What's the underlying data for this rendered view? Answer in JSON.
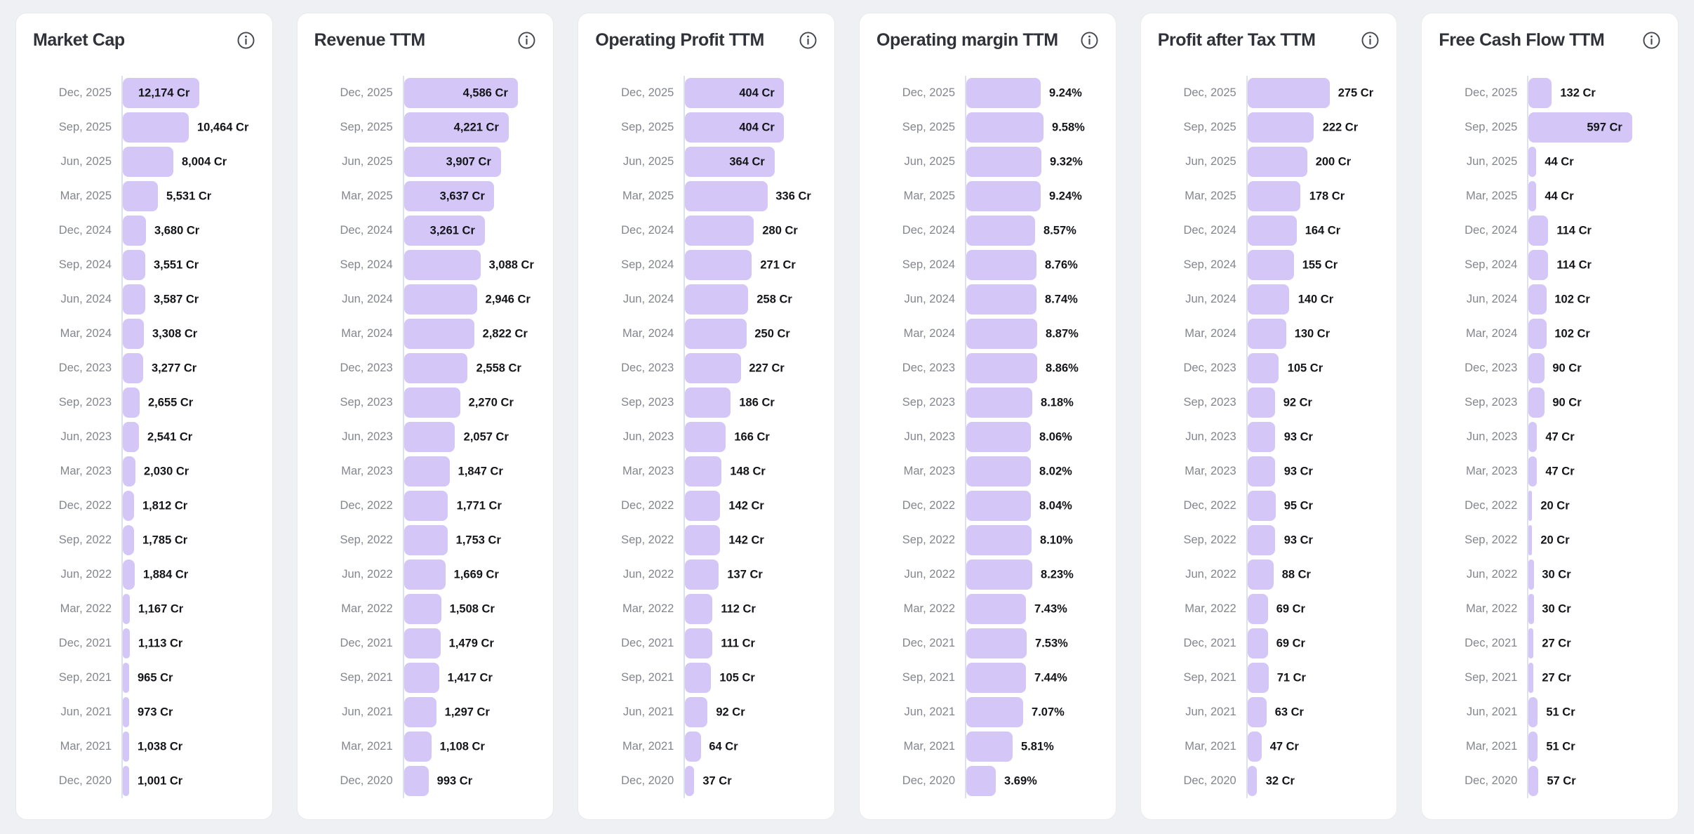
{
  "colors": {
    "bar_fill": "#d4c7f8",
    "card_background": "#ffffff",
    "page_background": "#eef0f3",
    "date_label": "#83868d",
    "value_label": "#141519",
    "title_text": "#2f3238",
    "baseline": "#dde1ec"
  },
  "icons": {
    "info": "info-icon"
  },
  "chart_data": [
    {
      "type": "bar",
      "orientation": "horizontal",
      "title": "Market Cap",
      "unit": "Cr",
      "legend": "none",
      "grid": "off",
      "xlim": [
        0,
        21000
      ],
      "categories": [
        "Dec, 2025",
        "Sep, 2025",
        "Jun, 2025",
        "Mar, 2025",
        "Dec, 2024",
        "Sep, 2024",
        "Jun, 2024",
        "Mar, 2024",
        "Dec, 2023",
        "Sep, 2023",
        "Jun, 2023",
        "Mar, 2023",
        "Dec, 2022",
        "Sep, 2022",
        "Jun, 2022",
        "Mar, 2022",
        "Dec, 2021",
        "Sep, 2021",
        "Jun, 2021",
        "Mar, 2021",
        "Dec, 2020"
      ],
      "values": [
        12174,
        10464,
        8004,
        5531,
        3680,
        3551,
        3587,
        3308,
        3277,
        2655,
        2541,
        2030,
        1812,
        1785,
        1884,
        1167,
        1113,
        965,
        973,
        1038,
        1001
      ],
      "labels": [
        "12,174 Cr",
        "10,464 Cr",
        "8,004 Cr",
        "5,531 Cr",
        "3,680 Cr",
        "3,551 Cr",
        "3,587 Cr",
        "3,308 Cr",
        "3,277 Cr",
        "2,655 Cr",
        "2,541 Cr",
        "2,030 Cr",
        "1,812 Cr",
        "1,785 Cr",
        "1,884 Cr",
        "1,167 Cr",
        "1,113 Cr",
        "965 Cr",
        "973 Cr",
        "1,038 Cr",
        "1,001 Cr"
      ]
    },
    {
      "type": "bar",
      "orientation": "horizontal",
      "title": "Revenue TTM",
      "unit": "Cr",
      "legend": "none",
      "grid": "off",
      "xlim": [
        0,
        5330
      ],
      "categories": [
        "Dec, 2025",
        "Sep, 2025",
        "Jun, 2025",
        "Mar, 2025",
        "Dec, 2024",
        "Sep, 2024",
        "Jun, 2024",
        "Mar, 2024",
        "Dec, 2023",
        "Sep, 2023",
        "Jun, 2023",
        "Mar, 2023",
        "Dec, 2022",
        "Sep, 2022",
        "Jun, 2022",
        "Mar, 2022",
        "Dec, 2021",
        "Sep, 2021",
        "Jun, 2021",
        "Mar, 2021",
        "Dec, 2020"
      ],
      "values": [
        4586,
        4221,
        3907,
        3637,
        3261,
        3088,
        2946,
        2822,
        2558,
        2270,
        2057,
        1847,
        1771,
        1753,
        1669,
        1508,
        1479,
        1417,
        1297,
        1108,
        993
      ],
      "labels": [
        "4,586 Cr",
        "4,221 Cr",
        "3,907 Cr",
        "3,637 Cr",
        "3,261 Cr",
        "3,088 Cr",
        "2,946 Cr",
        "2,822 Cr",
        "2,558 Cr",
        "2,270 Cr",
        "2,057 Cr",
        "1,847 Cr",
        "1,771 Cr",
        "1,753 Cr",
        "1,669 Cr",
        "1,508 Cr",
        "1,479 Cr",
        "1,417 Cr",
        "1,297 Cr",
        "1,108 Cr",
        "993 Cr"
      ]
    },
    {
      "type": "bar",
      "orientation": "horizontal",
      "title": "Operating Profit TTM",
      "unit": "Cr",
      "legend": "none",
      "grid": "off",
      "xlim": [
        0,
        540
      ],
      "categories": [
        "Dec, 2025",
        "Sep, 2025",
        "Jun, 2025",
        "Mar, 2025",
        "Dec, 2024",
        "Sep, 2024",
        "Jun, 2024",
        "Mar, 2024",
        "Dec, 2023",
        "Sep, 2023",
        "Jun, 2023",
        "Mar, 2023",
        "Dec, 2022",
        "Sep, 2022",
        "Jun, 2022",
        "Mar, 2022",
        "Dec, 2021",
        "Sep, 2021",
        "Jun, 2021",
        "Mar, 2021",
        "Dec, 2020"
      ],
      "values": [
        404,
        404,
        364,
        336,
        280,
        271,
        258,
        250,
        227,
        186,
        166,
        148,
        142,
        142,
        137,
        112,
        111,
        105,
        92,
        64,
        37
      ],
      "labels": [
        "404 Cr",
        "404 Cr",
        "364 Cr",
        "336 Cr",
        "280 Cr",
        "271 Cr",
        "258 Cr",
        "250 Cr",
        "227 Cr",
        "186 Cr",
        "166 Cr",
        "148 Cr",
        "142 Cr",
        "142 Cr",
        "137 Cr",
        "112 Cr",
        "111 Cr",
        "105 Cr",
        "92 Cr",
        "64 Cr",
        "37 Cr"
      ]
    },
    {
      "type": "bar",
      "orientation": "horizontal",
      "title": "Operating margin TTM",
      "unit": "%",
      "legend": "none",
      "grid": "off",
      "xlim": [
        0,
        16.5
      ],
      "categories": [
        "Dec, 2025",
        "Sep, 2025",
        "Jun, 2025",
        "Mar, 2025",
        "Dec, 2024",
        "Sep, 2024",
        "Jun, 2024",
        "Mar, 2024",
        "Dec, 2023",
        "Sep, 2023",
        "Jun, 2023",
        "Mar, 2023",
        "Dec, 2022",
        "Sep, 2022",
        "Jun, 2022",
        "Mar, 2022",
        "Dec, 2021",
        "Sep, 2021",
        "Jun, 2021",
        "Mar, 2021",
        "Dec, 2020"
      ],
      "values": [
        9.24,
        9.58,
        9.32,
        9.24,
        8.57,
        8.76,
        8.74,
        8.87,
        8.86,
        8.18,
        8.06,
        8.02,
        8.04,
        8.1,
        8.23,
        7.43,
        7.53,
        7.44,
        7.07,
        5.81,
        3.69
      ],
      "labels": [
        "9.24%",
        "9.58%",
        "9.32%",
        "9.24%",
        "8.57%",
        "8.76%",
        "8.74%",
        "8.87%",
        "8.86%",
        "8.18%",
        "8.06%",
        "8.02%",
        "8.04%",
        "8.10%",
        "8.23%",
        "7.43%",
        "7.53%",
        "7.44%",
        "7.07%",
        "5.81%",
        "3.69%"
      ]
    },
    {
      "type": "bar",
      "orientation": "horizontal",
      "title": "Profit after Tax TTM",
      "unit": "Cr",
      "legend": "none",
      "grid": "off",
      "xlim": [
        0,
        443
      ],
      "categories": [
        "Dec, 2025",
        "Sep, 2025",
        "Jun, 2025",
        "Mar, 2025",
        "Dec, 2024",
        "Sep, 2024",
        "Jun, 2024",
        "Mar, 2024",
        "Dec, 2023",
        "Sep, 2023",
        "Jun, 2023",
        "Mar, 2023",
        "Dec, 2022",
        "Sep, 2022",
        "Jun, 2022",
        "Mar, 2022",
        "Dec, 2021",
        "Sep, 2021",
        "Jun, 2021",
        "Mar, 2021",
        "Dec, 2020"
      ],
      "values": [
        275,
        222,
        200,
        178,
        164,
        155,
        140,
        130,
        105,
        92,
        93,
        93,
        95,
        93,
        88,
        69,
        69,
        71,
        63,
        47,
        32
      ],
      "labels": [
        "275 Cr",
        "222 Cr",
        "200 Cr",
        "178 Cr",
        "164 Cr",
        "155 Cr",
        "140 Cr",
        "130 Cr",
        "105 Cr",
        "92 Cr",
        "93 Cr",
        "93 Cr",
        "95 Cr",
        "93 Cr",
        "88 Cr",
        "69 Cr",
        "69 Cr",
        "71 Cr",
        "63 Cr",
        "47 Cr",
        "32 Cr"
      ]
    },
    {
      "type": "bar",
      "orientation": "horizontal",
      "title": "Free Cash Flow TTM",
      "unit": "Cr",
      "legend": "none",
      "grid": "off",
      "xlim": [
        0,
        765
      ],
      "categories": [
        "Dec, 2025",
        "Sep, 2025",
        "Jun, 2025",
        "Mar, 2025",
        "Dec, 2024",
        "Sep, 2024",
        "Jun, 2024",
        "Mar, 2024",
        "Dec, 2023",
        "Sep, 2023",
        "Jun, 2023",
        "Mar, 2023",
        "Dec, 2022",
        "Sep, 2022",
        "Jun, 2022",
        "Mar, 2022",
        "Dec, 2021",
        "Sep, 2021",
        "Jun, 2021",
        "Mar, 2021",
        "Dec, 2020"
      ],
      "values": [
        132,
        597,
        44,
        44,
        114,
        114,
        102,
        102,
        90,
        90,
        47,
        47,
        20,
        20,
        30,
        30,
        27,
        27,
        51,
        51,
        57
      ],
      "labels": [
        "132 Cr",
        "597 Cr",
        "44 Cr",
        "44 Cr",
        "114 Cr",
        "114 Cr",
        "102 Cr",
        "102 Cr",
        "90 Cr",
        "90 Cr",
        "47 Cr",
        "47 Cr",
        "20 Cr",
        "20 Cr",
        "30 Cr",
        "30 Cr",
        "27 Cr",
        "27 Cr",
        "51 Cr",
        "51 Cr",
        "57 Cr"
      ]
    }
  ]
}
